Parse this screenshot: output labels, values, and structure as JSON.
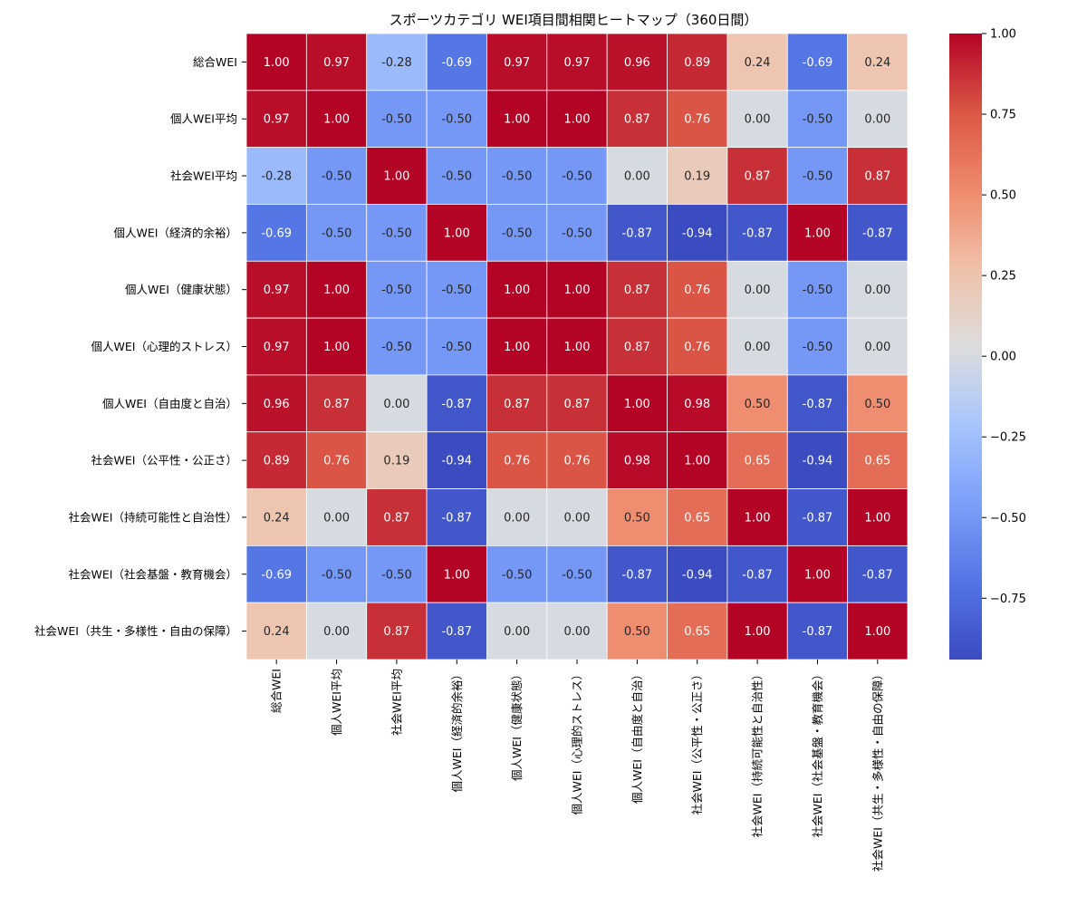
{
  "chart_data": {
    "type": "heatmap",
    "title": "スポーツカテゴリ WEI項目間相関ヒートマップ（360日間）",
    "labels": [
      "総合WEI",
      "個人WEI平均",
      "社会WEI平均",
      "個人WEI（経済的余裕）",
      "個人WEI（健康状態）",
      "個人WEI（心理的ストレス）",
      "個人WEI（自由度と自治）",
      "社会WEI（公平性・公正さ）",
      "社会WEI（持続可能性と自治性）",
      "社会WEI（社会基盤・教育機会）",
      "社会WEI（共生・多様性・自由の保障）"
    ],
    "matrix": [
      [
        1.0,
        0.97,
        -0.28,
        -0.69,
        0.97,
        0.97,
        0.96,
        0.89,
        0.24,
        -0.69,
        0.24
      ],
      [
        0.97,
        1.0,
        -0.5,
        -0.5,
        1.0,
        1.0,
        0.87,
        0.76,
        0.0,
        -0.5,
        0.0
      ],
      [
        -0.28,
        -0.5,
        1.0,
        -0.5,
        -0.5,
        -0.5,
        0.0,
        0.19,
        0.87,
        -0.5,
        0.87
      ],
      [
        -0.69,
        -0.5,
        -0.5,
        1.0,
        -0.5,
        -0.5,
        -0.87,
        -0.94,
        -0.87,
        1.0,
        -0.87
      ],
      [
        0.97,
        1.0,
        -0.5,
        -0.5,
        1.0,
        1.0,
        0.87,
        0.76,
        0.0,
        -0.5,
        0.0
      ],
      [
        0.97,
        1.0,
        -0.5,
        -0.5,
        1.0,
        1.0,
        0.87,
        0.76,
        0.0,
        -0.5,
        0.0
      ],
      [
        0.96,
        0.87,
        0.0,
        -0.87,
        0.87,
        0.87,
        1.0,
        0.98,
        0.5,
        -0.87,
        0.5
      ],
      [
        0.89,
        0.76,
        0.19,
        -0.94,
        0.76,
        0.76,
        0.98,
        1.0,
        0.65,
        -0.94,
        0.65
      ],
      [
        0.24,
        0.0,
        0.87,
        -0.87,
        0.0,
        0.0,
        0.5,
        0.65,
        1.0,
        -0.87,
        1.0
      ],
      [
        -0.69,
        -0.5,
        -0.5,
        1.0,
        -0.5,
        -0.5,
        -0.87,
        -0.94,
        -0.87,
        1.0,
        -0.87
      ],
      [
        0.24,
        0.0,
        0.87,
        -0.87,
        0.0,
        0.0,
        0.5,
        0.65,
        1.0,
        -0.87,
        1.0
      ]
    ],
    "colormap": "coolwarm",
    "vmin": -0.94,
    "vmax": 1.0,
    "colorbar_ticks": [
      1.0,
      0.75,
      0.5,
      0.25,
      0.0,
      -0.25,
      -0.5,
      -0.75
    ],
    "colorbar_tick_labels": [
      "1.00",
      "0.75",
      "0.50",
      "0.25",
      "0.00",
      "−0.25",
      "−0.50",
      "−0.75"
    ],
    "annotation_format": "2f"
  }
}
